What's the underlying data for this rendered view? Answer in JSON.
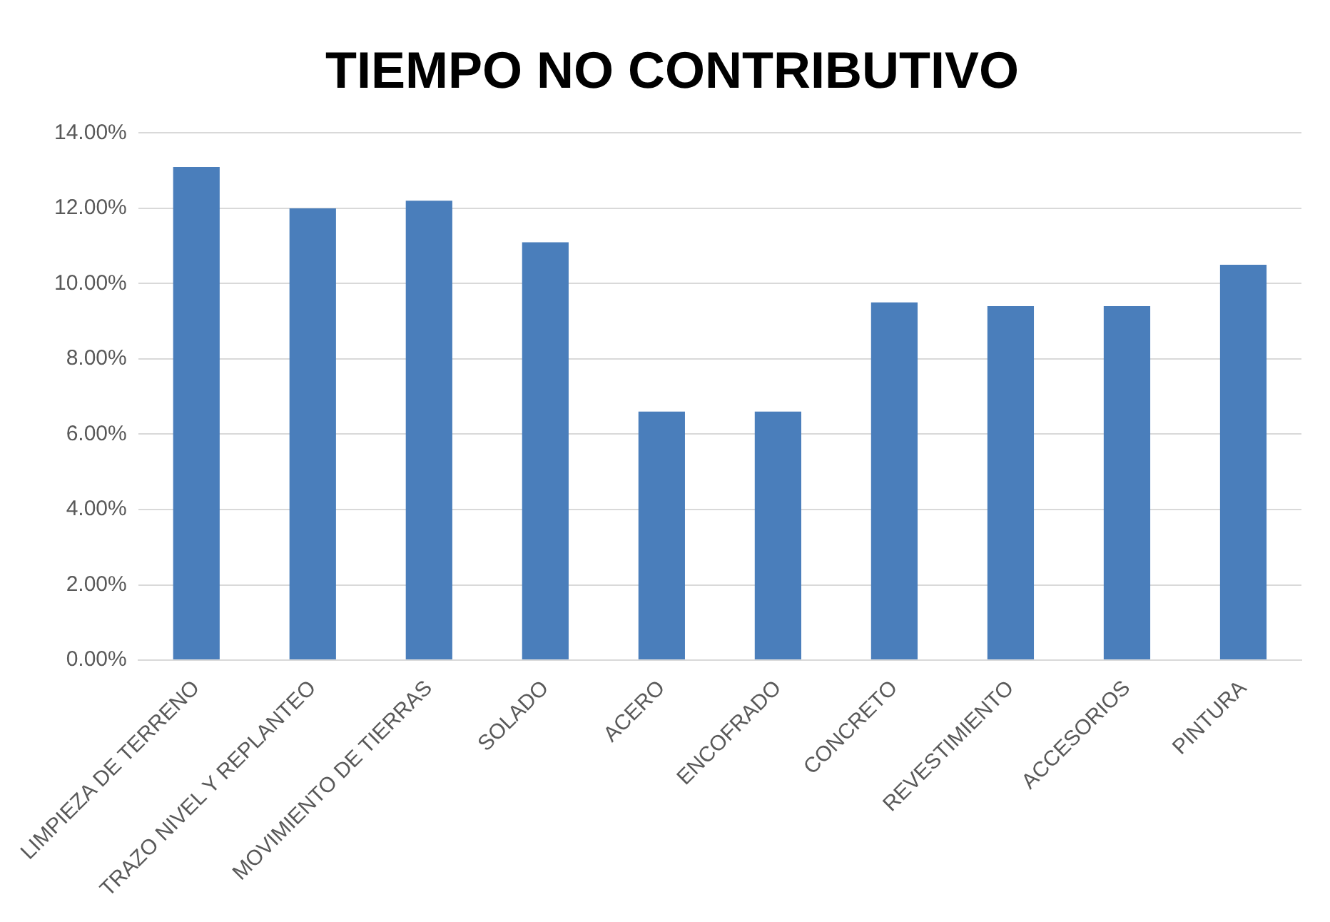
{
  "chart_data": {
    "type": "bar",
    "title": "TIEMPO NO CONTRIBUTIVO",
    "categories": [
      "LIMPIEZA DE TERRENO",
      "TRAZO NIVEL Y REPLANTEO",
      "MOVIMIENTO DE TIERRAS",
      "SOLADO",
      "ACERO",
      "ENCOFRADO",
      "CONCRETO",
      "REVESTIMIENTO",
      "ACCESORIOS",
      "PINTURA"
    ],
    "values": [
      13.1,
      12.0,
      12.2,
      11.1,
      6.6,
      6.6,
      9.5,
      9.4,
      9.4,
      10.5
    ],
    "color": "#4a7ebb",
    "ylim": [
      0,
      14
    ],
    "yticks": [
      {
        "value": 0,
        "label": "0.00%"
      },
      {
        "value": 2,
        "label": "2.00%"
      },
      {
        "value": 4,
        "label": "4.00%"
      },
      {
        "value": 6,
        "label": "6.00%"
      },
      {
        "value": 8,
        "label": "8.00%"
      },
      {
        "value": 10,
        "label": "10.00%"
      },
      {
        "value": 12,
        "label": "12.00%"
      },
      {
        "value": 14,
        "label": "14.00%"
      }
    ],
    "grid": "y",
    "legend": false
  }
}
